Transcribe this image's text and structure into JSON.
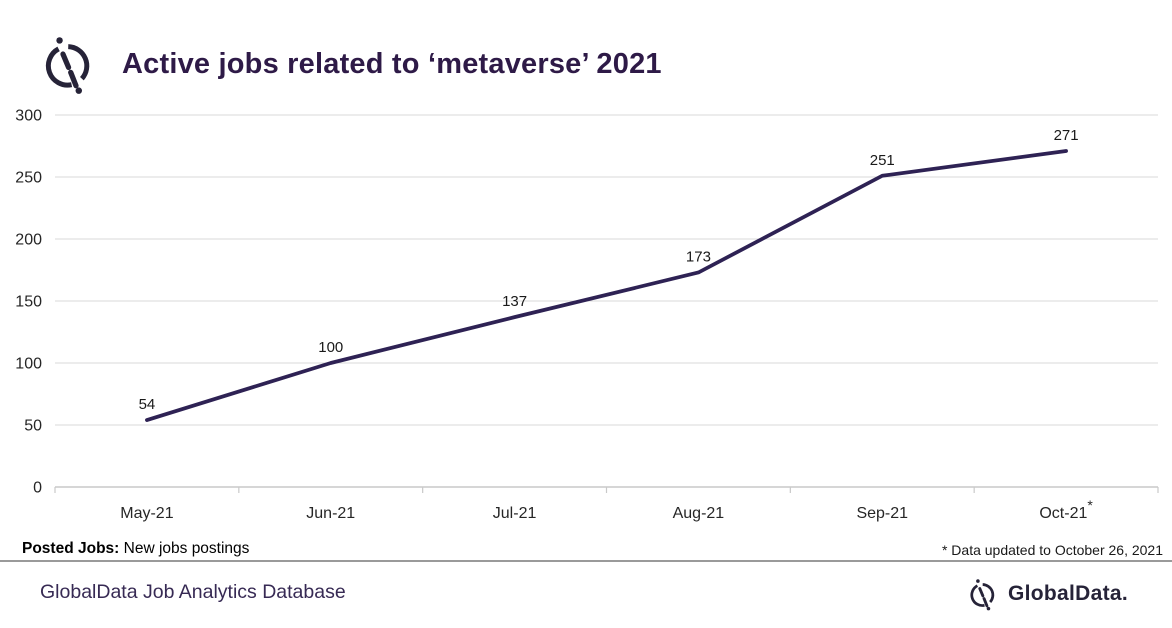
{
  "header": {
    "title": "Active jobs related to ‘metaverse’ 2021"
  },
  "chart_data": {
    "type": "line",
    "title": "Active jobs related to ‘metaverse’ 2021",
    "categories": [
      "May-21",
      "Jun-21",
      "Jul-21",
      "Aug-21",
      "Sep-21",
      "Oct-21"
    ],
    "values": [
      54,
      100,
      137,
      173,
      251,
      271
    ],
    "last_category_marker": "*",
    "xlabel": "",
    "ylabel": "",
    "ylim": [
      0,
      300
    ],
    "ytick_step": 50,
    "grid": "horizontal",
    "legend": "none",
    "data_labels": true,
    "line_color": "#2e2254"
  },
  "footnotes": {
    "posted_jobs_label": "Posted Jobs:",
    "posted_jobs_text": " New jobs postings",
    "update_note": "* Data updated to October 26, 2021"
  },
  "footer": {
    "left_text": "GlobalData Job Analytics Database",
    "brand": "GlobalData."
  },
  "icons": {
    "header_logo": "globaldata-compass-logo",
    "footer_logo": "globaldata-compass-logo"
  },
  "colors": {
    "title_ink": "#2e1a47",
    "line": "#2e2254",
    "gridline": "#d9d9d9",
    "axis": "#c9c9c9",
    "divider": "#9a9a9a",
    "brand_ink": "#262338"
  }
}
